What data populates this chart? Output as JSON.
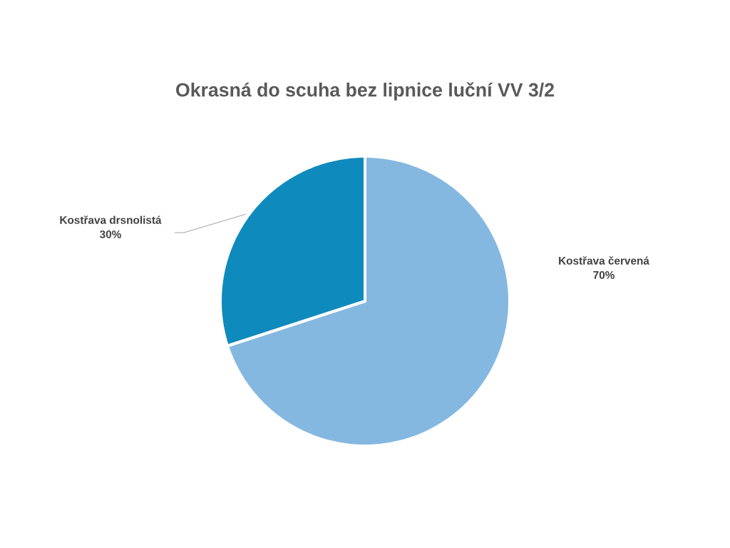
{
  "chart_data": {
    "type": "pie",
    "title": "Okrasná do scuha bez lipnice luční VV 3/2",
    "categories": [
      "Kostřava červená",
      "Kostřava drsnolistá"
    ],
    "values": [
      70,
      30
    ],
    "colors": [
      "#85b8e0",
      "#0f8abd"
    ],
    "value_labels": [
      "70%",
      "30%"
    ]
  }
}
